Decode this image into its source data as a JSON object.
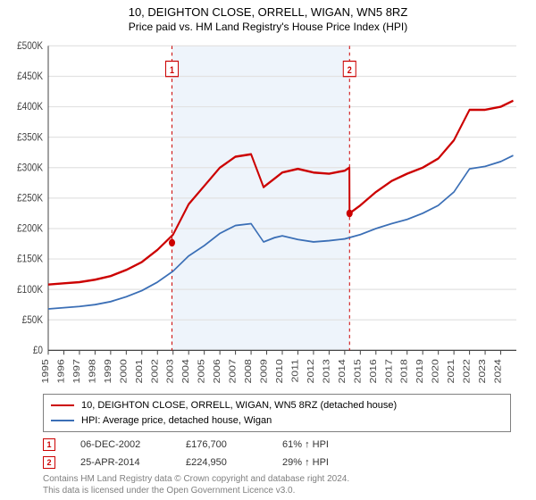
{
  "title": "10, DEIGHTON CLOSE, ORRELL, WIGAN, WN5 8RZ",
  "subtitle": "Price paid vs. HM Land Registry's House Price Index (HPI)",
  "chart": {
    "type": "line",
    "background_color": "#ffffff",
    "band_color": "#eef4fb",
    "grid_color": "#e2e2e2",
    "axis_color": "#444444",
    "x_start": 1995,
    "x_end": 2025,
    "x_ticks": [
      1995,
      1996,
      1997,
      1998,
      1999,
      2000,
      2001,
      2002,
      2003,
      2004,
      2005,
      2006,
      2007,
      2008,
      2009,
      2010,
      2011,
      2012,
      2013,
      2014,
      2015,
      2016,
      2017,
      2018,
      2019,
      2020,
      2021,
      2022,
      2023,
      2024
    ],
    "y_min": 0,
    "y_max": 500000,
    "y_tick_step": 50000,
    "y_tick_labels": [
      "£0",
      "£50K",
      "£100K",
      "£150K",
      "£200K",
      "£250K",
      "£300K",
      "£350K",
      "£400K",
      "£450K",
      "£500K"
    ],
    "tick_fontsize": 10,
    "series": [
      {
        "name": "10, DEIGHTON CLOSE, ORRELL, WIGAN, WN5 8RZ (detached house)",
        "color": "#cc0000",
        "line_width": 2,
        "points_x": [
          1995,
          1996,
          1997,
          1998,
          1999,
          2000,
          2001,
          2002,
          2003,
          2004,
          2005,
          2006,
          2007,
          2008,
          2008.8,
          2009.5,
          2010,
          2011,
          2012,
          2013,
          2014,
          2014.3,
          2014.31,
          2015,
          2016,
          2017,
          2018,
          2019,
          2020,
          2021,
          2022,
          2023,
          2024,
          2024.8
        ],
        "points_y": [
          108000,
          110000,
          112000,
          116000,
          122000,
          132000,
          145000,
          165000,
          190000,
          240000,
          270000,
          300000,
          318000,
          322000,
          268000,
          282000,
          292000,
          298000,
          292000,
          290000,
          295000,
          300000,
          225000,
          238000,
          260000,
          278000,
          290000,
          300000,
          315000,
          345000,
          395000,
          395000,
          400000,
          410000
        ]
      },
      {
        "name": "HPI: Average price, detached house, Wigan",
        "color": "#3b6fb6",
        "line_width": 1.5,
        "points_x": [
          1995,
          1996,
          1997,
          1998,
          1999,
          2000,
          2001,
          2002,
          2003,
          2004,
          2005,
          2006,
          2007,
          2008,
          2008.8,
          2009.5,
          2010,
          2011,
          2012,
          2013,
          2014,
          2015,
          2016,
          2017,
          2018,
          2019,
          2020,
          2021,
          2022,
          2023,
          2024,
          2024.8
        ],
        "points_y": [
          68000,
          70000,
          72000,
          75000,
          80000,
          88000,
          98000,
          112000,
          130000,
          155000,
          172000,
          192000,
          205000,
          208000,
          178000,
          185000,
          188000,
          182000,
          178000,
          180000,
          183000,
          190000,
          200000,
          208000,
          215000,
          225000,
          238000,
          260000,
          298000,
          302000,
          310000,
          320000
        ]
      }
    ],
    "sale_markers": [
      {
        "n": "1",
        "x": 2002.93,
        "y": 176700,
        "line_color": "#cc0000"
      },
      {
        "n": "2",
        "x": 2014.31,
        "y": 224950,
        "line_color": "#cc0000"
      }
    ],
    "marker_box_border": "#cc0000",
    "marker_box_fill": "#ffffff"
  },
  "legend": {
    "items": [
      {
        "color": "#cc0000",
        "label": "10, DEIGHTON CLOSE, ORRELL, WIGAN, WN5 8RZ (detached house)"
      },
      {
        "color": "#3b6fb6",
        "label": "HPI: Average price, detached house, Wigan"
      }
    ]
  },
  "sales": [
    {
      "n": "1",
      "date": "06-DEC-2002",
      "price": "£176,700",
      "hpi": "61% ↑ HPI",
      "color": "#cc0000"
    },
    {
      "n": "2",
      "date": "25-APR-2014",
      "price": "£224,950",
      "hpi": "29% ↑ HPI",
      "color": "#cc0000"
    }
  ],
  "footnote_line1": "Contains HM Land Registry data © Crown copyright and database right 2024.",
  "footnote_line2": "This data is licensed under the Open Government Licence v3.0."
}
